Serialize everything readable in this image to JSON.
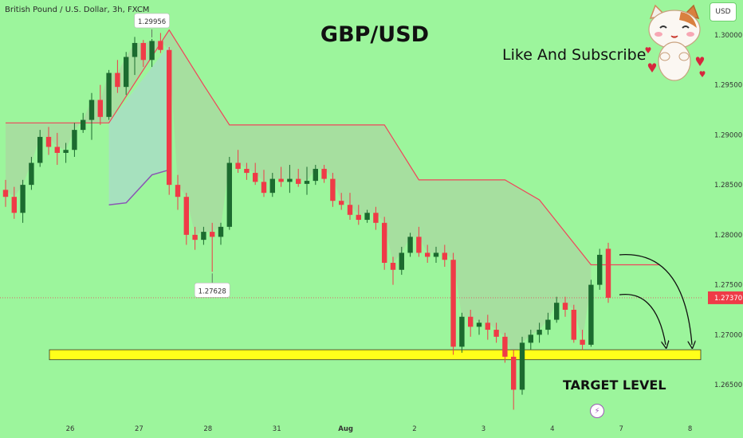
{
  "symbol": "British Pound / U.S. Dollar, 3h, FXCM",
  "currency_label": "USD",
  "title": "GBP/USD",
  "subscribe_text": "Like And Subscribe",
  "target_text": "TARGET LEVEL",
  "colors": {
    "background": "#9cf59c",
    "bull": "#1c6b2f",
    "bear": "#ef3b47",
    "upper_band": "#f0445a",
    "lower_band": "#8a56b3",
    "band_fill": "#a8dba0",
    "target_zone": "#ffff1a",
    "price_line": "#e05561"
  },
  "icons": [
    "cat-mascot-icon",
    "flash-icon"
  ],
  "chart_data": {
    "type": "candlestick",
    "symbol": "GBPUSD",
    "timeframe": "3h",
    "y_ticks": [
      "1.30000",
      "1.29500",
      "1.29000",
      "1.28500",
      "1.28000",
      "1.27500",
      "1.27000",
      "1.26500"
    ],
    "y_tick_values": [
      1.3,
      1.295,
      1.29,
      1.285,
      1.28,
      1.275,
      1.27,
      1.265
    ],
    "ylim": [
      1.2615,
      1.3035
    ],
    "x_tick_labels": [
      "26",
      "27",
      "28",
      "31",
      "Aug",
      "2",
      "3",
      "4",
      "7",
      "8"
    ],
    "x_tick_positions": [
      7.5,
      15.5,
      23.5,
      31.5,
      39.5,
      47.5,
      55.5,
      63.5,
      71.5,
      79.5
    ],
    "candle_count": 70,
    "current_price": 1.2737,
    "current_price_label": "1.27370",
    "high_label": "1.29956",
    "high_index": 17,
    "low_label": "1.27628",
    "low_index": 24,
    "target_zone": [
      1.2675,
      1.2685
    ],
    "candles": [
      [
        1.2845,
        1.2855,
        1.2828,
        1.2838
      ],
      [
        1.2838,
        1.2848,
        1.2816,
        1.2822
      ],
      [
        1.2822,
        1.2855,
        1.2812,
        1.285
      ],
      [
        1.285,
        1.2878,
        1.2845,
        1.2872
      ],
      [
        1.2872,
        1.2905,
        1.2868,
        1.2898
      ],
      [
        1.2898,
        1.2908,
        1.288,
        1.2888
      ],
      [
        1.2888,
        1.2902,
        1.287,
        1.2882
      ],
      [
        1.2882,
        1.2892,
        1.2872,
        1.2885
      ],
      [
        1.2885,
        1.2912,
        1.2878,
        1.2905
      ],
      [
        1.2905,
        1.2922,
        1.2902,
        1.2915
      ],
      [
        1.2915,
        1.2942,
        1.2895,
        1.2935
      ],
      [
        1.2935,
        1.295,
        1.291,
        1.2918
      ],
      [
        1.2918,
        1.2965,
        1.2915,
        1.2962
      ],
      [
        1.2962,
        1.2975,
        1.2942,
        1.2948
      ],
      [
        1.2948,
        1.2983,
        1.294,
        1.2978
      ],
      [
        1.2978,
        1.2998,
        1.296,
        1.2992
      ],
      [
        1.2992,
        1.2995,
        1.2968,
        1.2975
      ],
      [
        1.2975,
        1.2996,
        1.2968,
        1.2994
      ],
      [
        1.2994,
        1.3002,
        1.2982,
        1.2985
      ],
      [
        1.2985,
        1.2988,
        1.284,
        1.285
      ],
      [
        1.285,
        1.286,
        1.2825,
        1.2838
      ],
      [
        1.2838,
        1.2842,
        1.279,
        1.28
      ],
      [
        1.28,
        1.2808,
        1.2785,
        1.2795
      ],
      [
        1.2795,
        1.2808,
        1.279,
        1.2803
      ],
      [
        1.2803,
        1.2812,
        1.2763,
        1.2798
      ],
      [
        1.2798,
        1.2812,
        1.279,
        1.2808
      ],
      [
        1.2808,
        1.2878,
        1.2805,
        1.2872
      ],
      [
        1.2872,
        1.2885,
        1.2862,
        1.2866
      ],
      [
        1.2866,
        1.2872,
        1.2855,
        1.2862
      ],
      [
        1.2862,
        1.2872,
        1.285,
        1.2853
      ],
      [
        1.2853,
        1.2865,
        1.2838,
        1.2842
      ],
      [
        1.2842,
        1.2862,
        1.2838,
        1.2856
      ],
      [
        1.2856,
        1.2868,
        1.2848,
        1.2853
      ],
      [
        1.2853,
        1.287,
        1.2842,
        1.2856
      ],
      [
        1.2856,
        1.2866,
        1.2848,
        1.2851
      ],
      [
        1.2851,
        1.2868,
        1.284,
        1.2854
      ],
      [
        1.2854,
        1.287,
        1.285,
        1.2866
      ],
      [
        1.2866,
        1.287,
        1.2852,
        1.2856
      ],
      [
        1.2856,
        1.2862,
        1.2828,
        1.2834
      ],
      [
        1.2834,
        1.2842,
        1.2825,
        1.283
      ],
      [
        1.283,
        1.2842,
        1.2815,
        1.282
      ],
      [
        1.282,
        1.283,
        1.281,
        1.2815
      ],
      [
        1.2815,
        1.2825,
        1.2812,
        1.2822
      ],
      [
        1.2822,
        1.2828,
        1.2805,
        1.2812
      ],
      [
        1.2812,
        1.2818,
        1.2765,
        1.2772
      ],
      [
        1.2772,
        1.2778,
        1.275,
        1.2765
      ],
      [
        1.2765,
        1.2788,
        1.276,
        1.2782
      ],
      [
        1.2782,
        1.2802,
        1.2778,
        1.2798
      ],
      [
        1.2798,
        1.2808,
        1.2778,
        1.2782
      ],
      [
        1.2782,
        1.279,
        1.2772,
        1.2778
      ],
      [
        1.2778,
        1.2788,
        1.2772,
        1.2782
      ],
      [
        1.2782,
        1.279,
        1.2768,
        1.2775
      ],
      [
        1.2775,
        1.2782,
        1.268,
        1.2688
      ],
      [
        1.2688,
        1.2722,
        1.2682,
        1.2718
      ],
      [
        1.2718,
        1.2725,
        1.2698,
        1.2708
      ],
      [
        1.2708,
        1.2715,
        1.27,
        1.2712
      ],
      [
        1.2712,
        1.272,
        1.2695,
        1.2705
      ],
      [
        1.2705,
        1.2712,
        1.2692,
        1.2698
      ],
      [
        1.2698,
        1.2702,
        1.2672,
        1.2678
      ],
      [
        1.2678,
        1.2685,
        1.2625,
        1.2645
      ],
      [
        1.2645,
        1.2698,
        1.264,
        1.2692
      ],
      [
        1.2692,
        1.2705,
        1.2685,
        1.27
      ],
      [
        1.27,
        1.2712,
        1.2692,
        1.2705
      ],
      [
        1.2705,
        1.2722,
        1.27,
        1.2715
      ],
      [
        1.2715,
        1.2738,
        1.2712,
        1.2732
      ],
      [
        1.2732,
        1.2738,
        1.2718,
        1.2725
      ],
      [
        1.2725,
        1.273,
        1.2692,
        1.2695
      ],
      [
        1.2695,
        1.2705,
        1.2685,
        1.269
      ],
      [
        1.269,
        1.2755,
        1.2688,
        1.275
      ],
      [
        1.275,
        1.2786,
        1.2745,
        1.278
      ]
    ],
    "last_candle": [
      1.2786,
      1.2792,
      1.2732,
      1.2737
    ],
    "upper_band": [
      [
        0,
        1.2912
      ],
      [
        12,
        1.2912
      ],
      [
        19,
        1.3005
      ],
      [
        23,
        1.295
      ],
      [
        26,
        1.291
      ],
      [
        44,
        1.291
      ],
      [
        48,
        1.2855
      ],
      [
        58,
        1.2855
      ],
      [
        62,
        1.2835
      ],
      [
        68,
        1.277
      ],
      [
        76,
        1.277
      ]
    ],
    "lower_band": [
      [
        12,
        1.283
      ],
      [
        14,
        1.2832
      ],
      [
        17,
        1.286
      ],
      [
        19,
        1.2865
      ]
    ]
  }
}
